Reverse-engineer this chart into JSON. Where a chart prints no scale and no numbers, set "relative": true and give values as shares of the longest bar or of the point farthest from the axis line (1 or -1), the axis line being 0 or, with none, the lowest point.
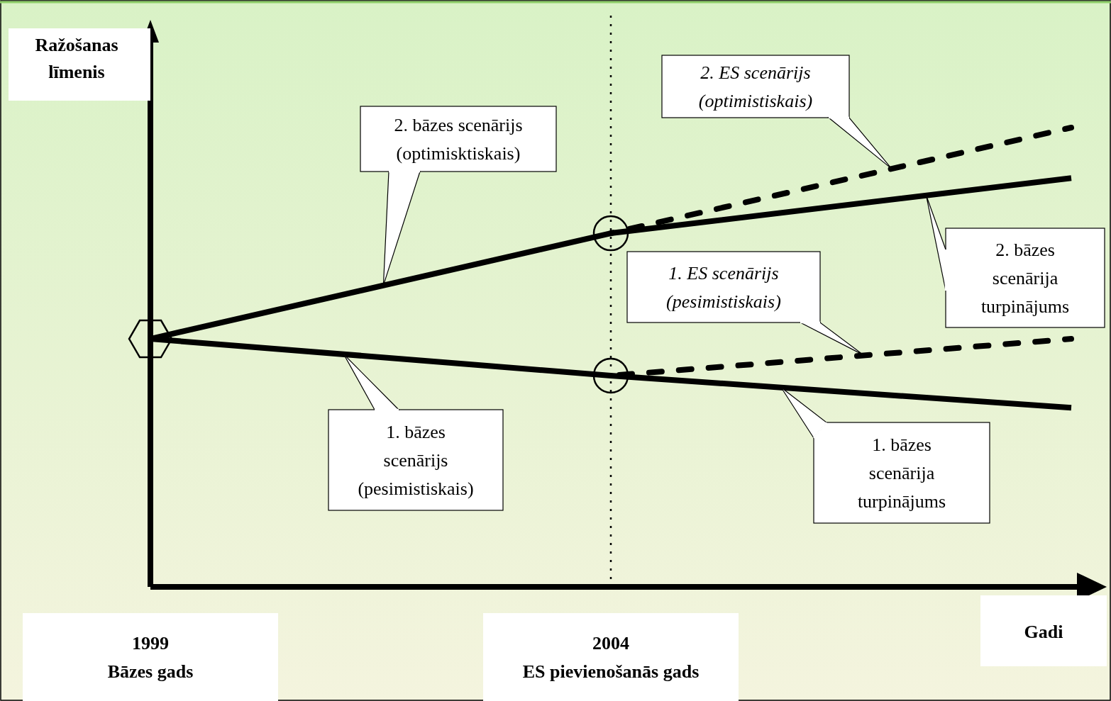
{
  "chart_data": {
    "type": "line",
    "relative": true,
    "xlabel": "Gadi",
    "ylabel": "Ražošanas līmenis",
    "categories": [
      "1999 Bāzes gads",
      "2004 ES pievienošanās gads",
      null
    ],
    "series": [
      {
        "color": "#000000",
        "line_style": "solid",
        "values": [
          0.54,
          0.77,
          0.89
        ]
      },
      {
        "color": "#000000",
        "line_style": "dashed",
        "values": [
          null,
          0.77,
          1
        ]
      },
      {
        "color": "#000000",
        "line_style": "solid",
        "values": [
          0.54,
          0.46,
          0.39
        ]
      },
      {
        "color": "#000000",
        "line_style": "dashed",
        "values": [
          null,
          0.46,
          0.54
        ]
      }
    ],
    "annotations": [
      "2. bāzes scenārijs (optimisktiskais)",
      "2. bāzes scenārija turpinājums",
      "2. ES scenārijs (optimistiskais)",
      "1. bāzes scenārijs (pesimistiskais)",
      "1. bāzes scenārija turpinājums",
      "1. ES scenārijs (pesimistiskais)"
    ],
    "ref_lines": [
      {
        "axis": "x",
        "value": "2004 ES pievienošanās gads",
        "line_style": "dotted",
        "color": "#000000"
      }
    ]
  }
}
